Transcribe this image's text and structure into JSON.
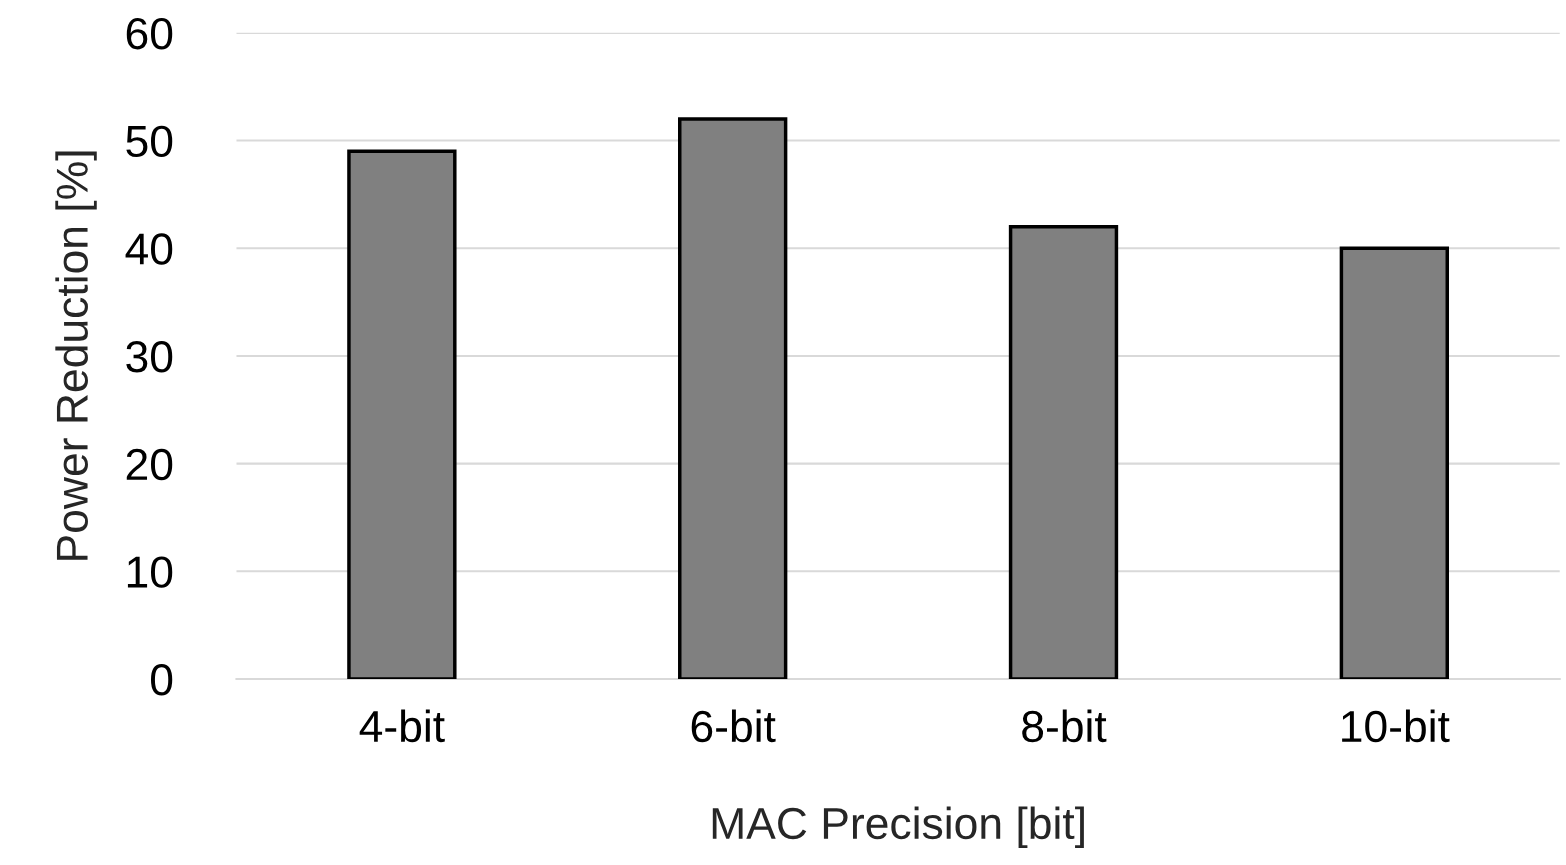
{
  "chart_data": {
    "type": "bar",
    "xlabel": "MAC Precision [bit]",
    "ylabel": "Power Reduction [%]",
    "categories": [
      "4-bit",
      "6-bit",
      "8-bit",
      "10-bit"
    ],
    "values": [
      49,
      52,
      42,
      40
    ],
    "color": "#808080",
    "ylim": [
      0,
      60
    ],
    "yticks": [
      0,
      10,
      20,
      30,
      40,
      50,
      60
    ],
    "grid": "y"
  }
}
